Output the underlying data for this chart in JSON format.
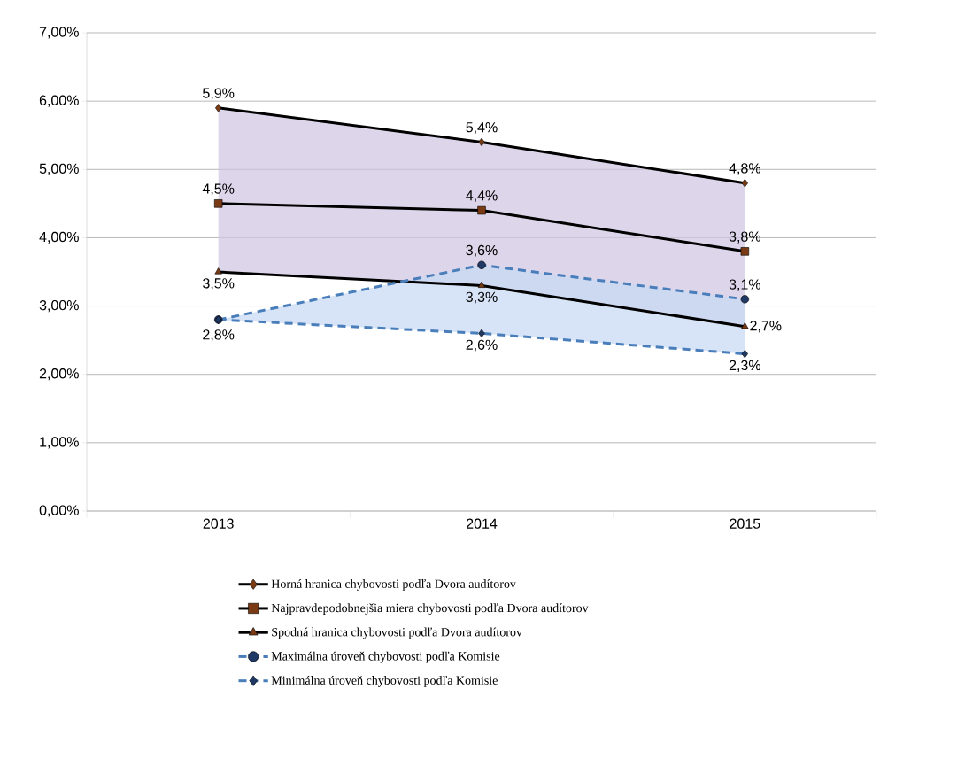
{
  "chart_data": {
    "type": "line",
    "categories": [
      "2013",
      "2014",
      "2015"
    ],
    "ylim": [
      0,
      7
    ],
    "yticks": [
      {
        "value": 0,
        "label": "0,00%"
      },
      {
        "value": 1,
        "label": "1,00%"
      },
      {
        "value": 2,
        "label": "2,00%"
      },
      {
        "value": 3,
        "label": "3,00%"
      },
      {
        "value": 4,
        "label": "4,00%"
      },
      {
        "value": 5,
        "label": "5,00%"
      },
      {
        "value": 6,
        "label": "6,00%"
      },
      {
        "value": 7,
        "label": "7,00%"
      }
    ],
    "grid": "y",
    "legend": "bottom",
    "series": [
      {
        "name": "Horná hranica chybovosti podľa Dvora audítorov",
        "color": "#000000",
        "marker": "diamond",
        "line_style": "solid",
        "values": [
          5.9,
          5.4,
          4.8
        ],
        "value_labels": [
          "5,9%",
          "5,4%",
          "4,8%"
        ]
      },
      {
        "name": "Najpravdepodobnejšia miera chybovosti podľa Dvora audítorov",
        "color": "#000000",
        "marker": "square",
        "line_style": "solid",
        "values": [
          4.5,
          4.4,
          3.8
        ],
        "value_labels": [
          "4,5%",
          "4,4%",
          "3,8%"
        ],
        "lower": [
          3.5,
          3.3,
          2.7
        ],
        "upper": [
          5.9,
          5.4,
          4.8
        ]
      },
      {
        "name": "Spodná hranica chybovosti podľa Dvora audítorov",
        "color": "#000000",
        "marker": "triangle",
        "line_style": "solid",
        "values": [
          3.5,
          3.3,
          2.7
        ],
        "value_labels": [
          "3,5%",
          "3,3%",
          "2,7%"
        ]
      },
      {
        "name": "Maximálna úroveň chybovosti podľa Komisie",
        "color": "#4a7ebb",
        "marker": "circle",
        "line_style": "dashed",
        "values": [
          2.8,
          3.6,
          3.1
        ],
        "value_labels": [
          null,
          "3,6%",
          "3,1%"
        ]
      },
      {
        "name": "Minimálna úroveň chybovosti podľa Komisie",
        "color": "#4a7ebb",
        "marker": "diamond",
        "line_style": "dashed",
        "values": [
          2.8,
          2.6,
          2.3
        ],
        "value_labels": [
          "2,8%",
          "2,6%",
          "2,3%"
        ],
        "lower": [
          2.8,
          2.6,
          2.3
        ],
        "upper": [
          2.8,
          3.6,
          3.1
        ]
      }
    ]
  }
}
